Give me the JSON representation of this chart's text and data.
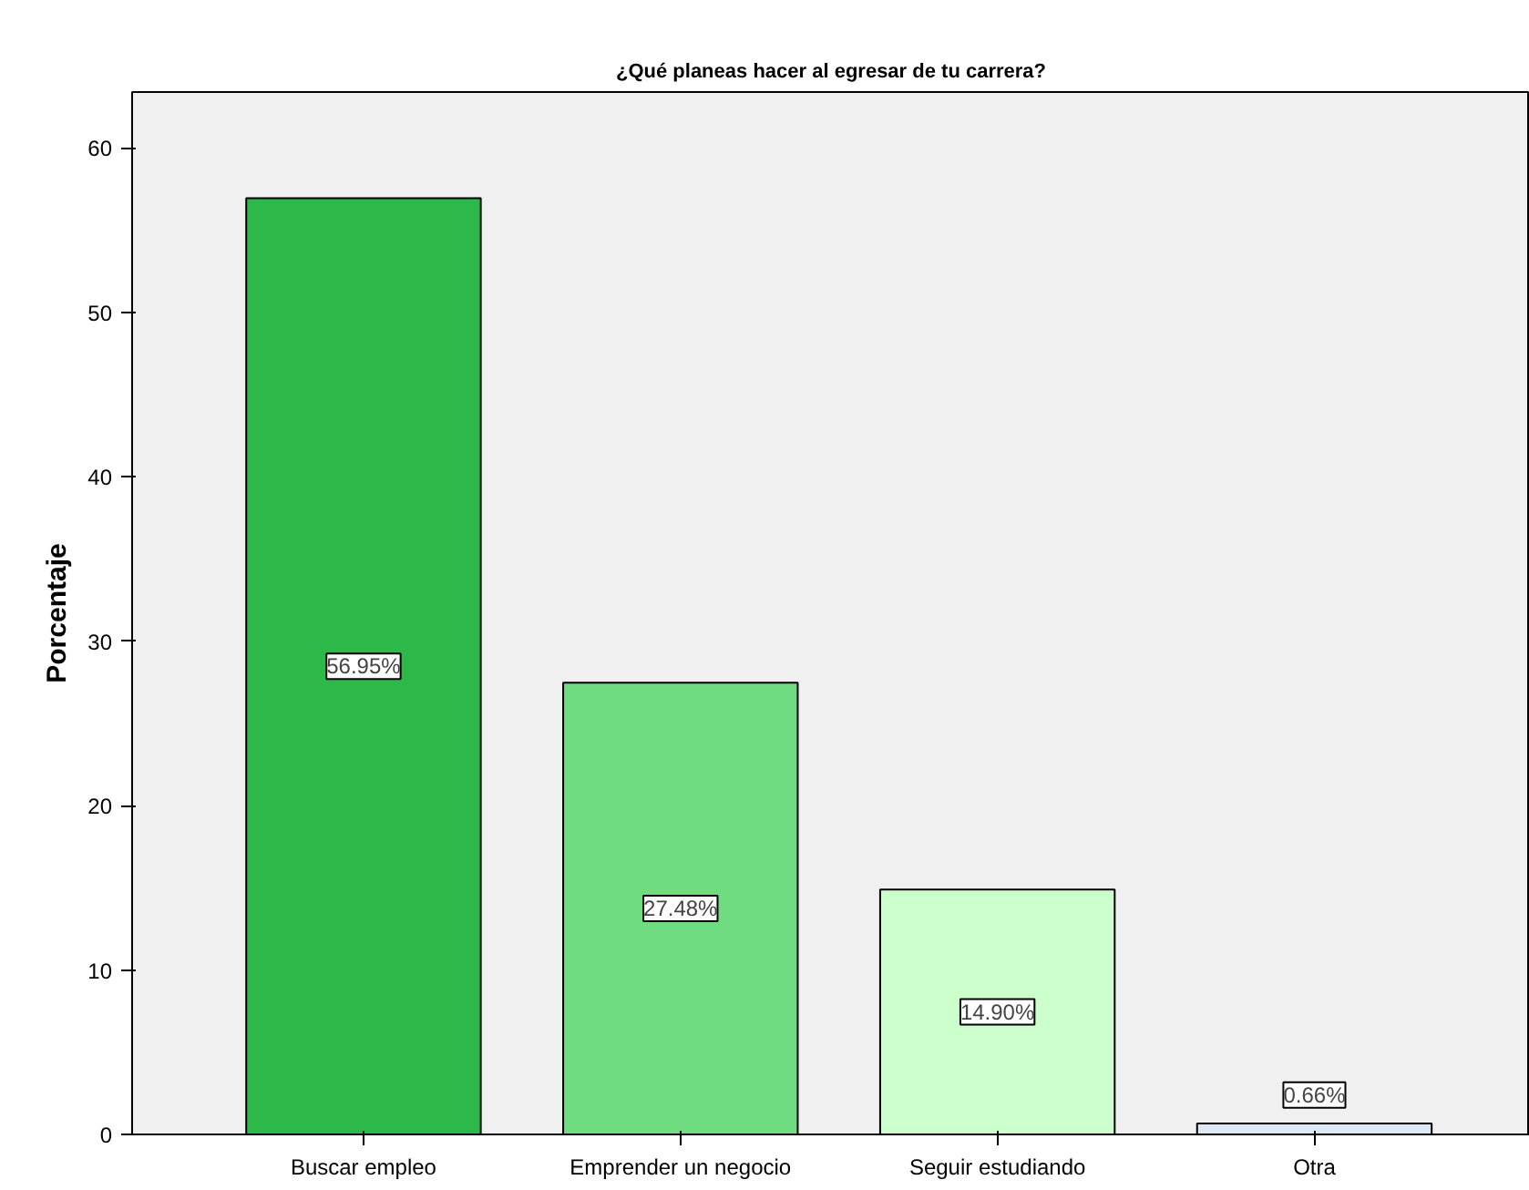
{
  "chart_data": {
    "type": "bar",
    "title": "¿Qué planeas hacer al egresar de tu carrera?",
    "ylabel": "Porcentaje",
    "categories": [
      "Buscar empleo",
      "Emprender un negocio",
      "Seguir estudiando",
      "Otra"
    ],
    "values": [
      56.95,
      27.48,
      14.9,
      0.66
    ],
    "colors": [
      "#2db84a",
      "#70dc82",
      "#ccffcc",
      "#dde8f5"
    ],
    "value_labels": [
      "56.95%",
      "27.48%",
      "14.90%",
      "0.66%"
    ],
    "ylim": [
      0,
      63.4
    ],
    "yticks": [
      0,
      10,
      20,
      30,
      40,
      50,
      60
    ],
    "grid": false
  }
}
